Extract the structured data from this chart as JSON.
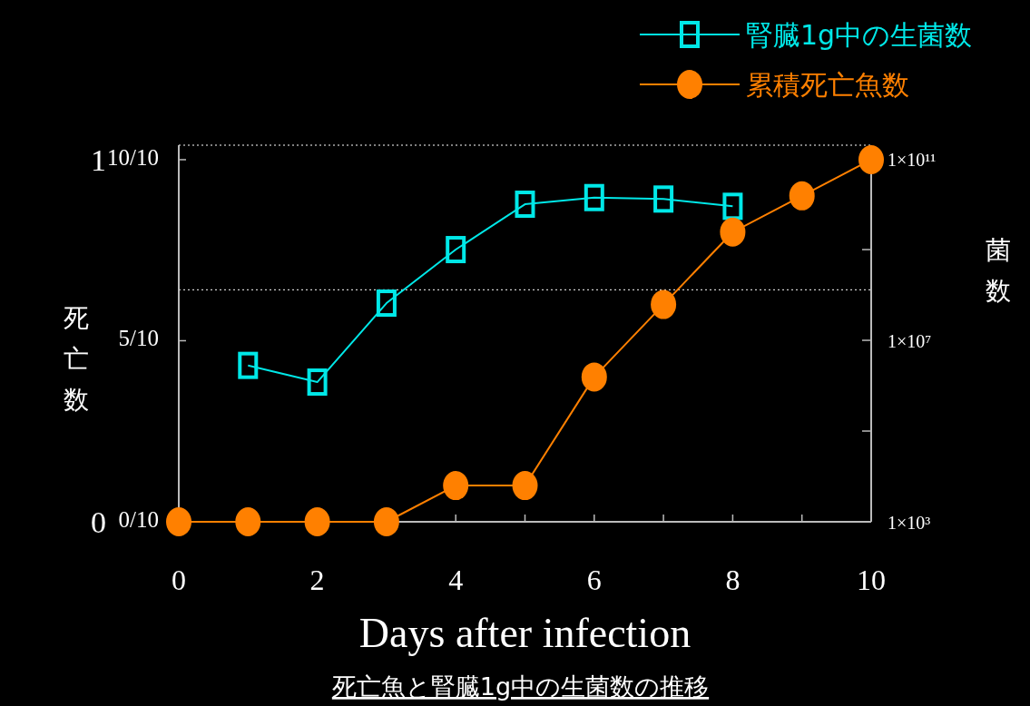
{
  "chart_data": {
    "type": "line",
    "title": "死亡魚と腎臓1g中の生菌数の推移",
    "xlabel": "Days after infection",
    "ylabel": "死亡数",
    "y2label": "菌数",
    "xlim": [
      0,
      10
    ],
    "xticks": [
      0,
      {
        "value": 1,
        "label": null
      },
      2,
      {
        "value": 3,
        "label": null
      },
      4,
      {
        "value": 5,
        "label": null
      },
      6,
      {
        "value": 7,
        "label": null
      },
      8,
      {
        "value": 9,
        "label": null
      },
      10
    ],
    "ylim": [
      0,
      1.04
    ],
    "yticks": [
      {
        "value": 0,
        "label": "0/10"
      },
      {
        "value": 0.5,
        "label": "5/10"
      },
      {
        "value": 1,
        "label": "10/10"
      }
    ],
    "y2lim": [
      1000,
      200000000000
    ],
    "y2ticks": [
      {
        "value": 1000,
        "label": "1×10³"
      },
      {
        "value": 100000,
        "label": null
      },
      {
        "value": 10000000,
        "label": "1×10⁷"
      },
      {
        "value": 1000000000,
        "label": null
      },
      {
        "value": 100000000000,
        "label": "1×10¹¹"
      }
    ],
    "y3lim": [
      0,
      1.04
    ],
    "y3ticks": [
      0,
      1
    ],
    "log": "y2",
    "grid": false,
    "legend": "top right",
    "ref_lines": [
      {
        "axis": "y2",
        "value": 130000000,
        "color": "#ffffff",
        "line_style": "dotted"
      },
      {
        "axis": "y2",
        "value": 200000000000,
        "color": "#ffffff",
        "line_style": "dotted"
      }
    ],
    "series": [
      {
        "name": "腎臓1g中の生菌数",
        "color": "#00e8e8",
        "axis": "y2",
        "marker": "square",
        "x": [
          1,
          2,
          3,
          4,
          5,
          6,
          7,
          8
        ],
        "values": [
          2800000,
          1200000,
          66000000,
          1000000000,
          10000000000,
          14000000000,
          13000000000,
          9000000000
        ]
      },
      {
        "name": "累積死亡魚数",
        "color": "#ff8000",
        "marker": "circle",
        "x": [
          0,
          1,
          2,
          3,
          4,
          5,
          6,
          7,
          8,
          9,
          10
        ],
        "values": [
          0,
          0,
          0,
          0,
          0.1,
          0.1,
          0.4,
          0.6,
          0.8,
          0.9,
          1
        ]
      }
    ]
  }
}
